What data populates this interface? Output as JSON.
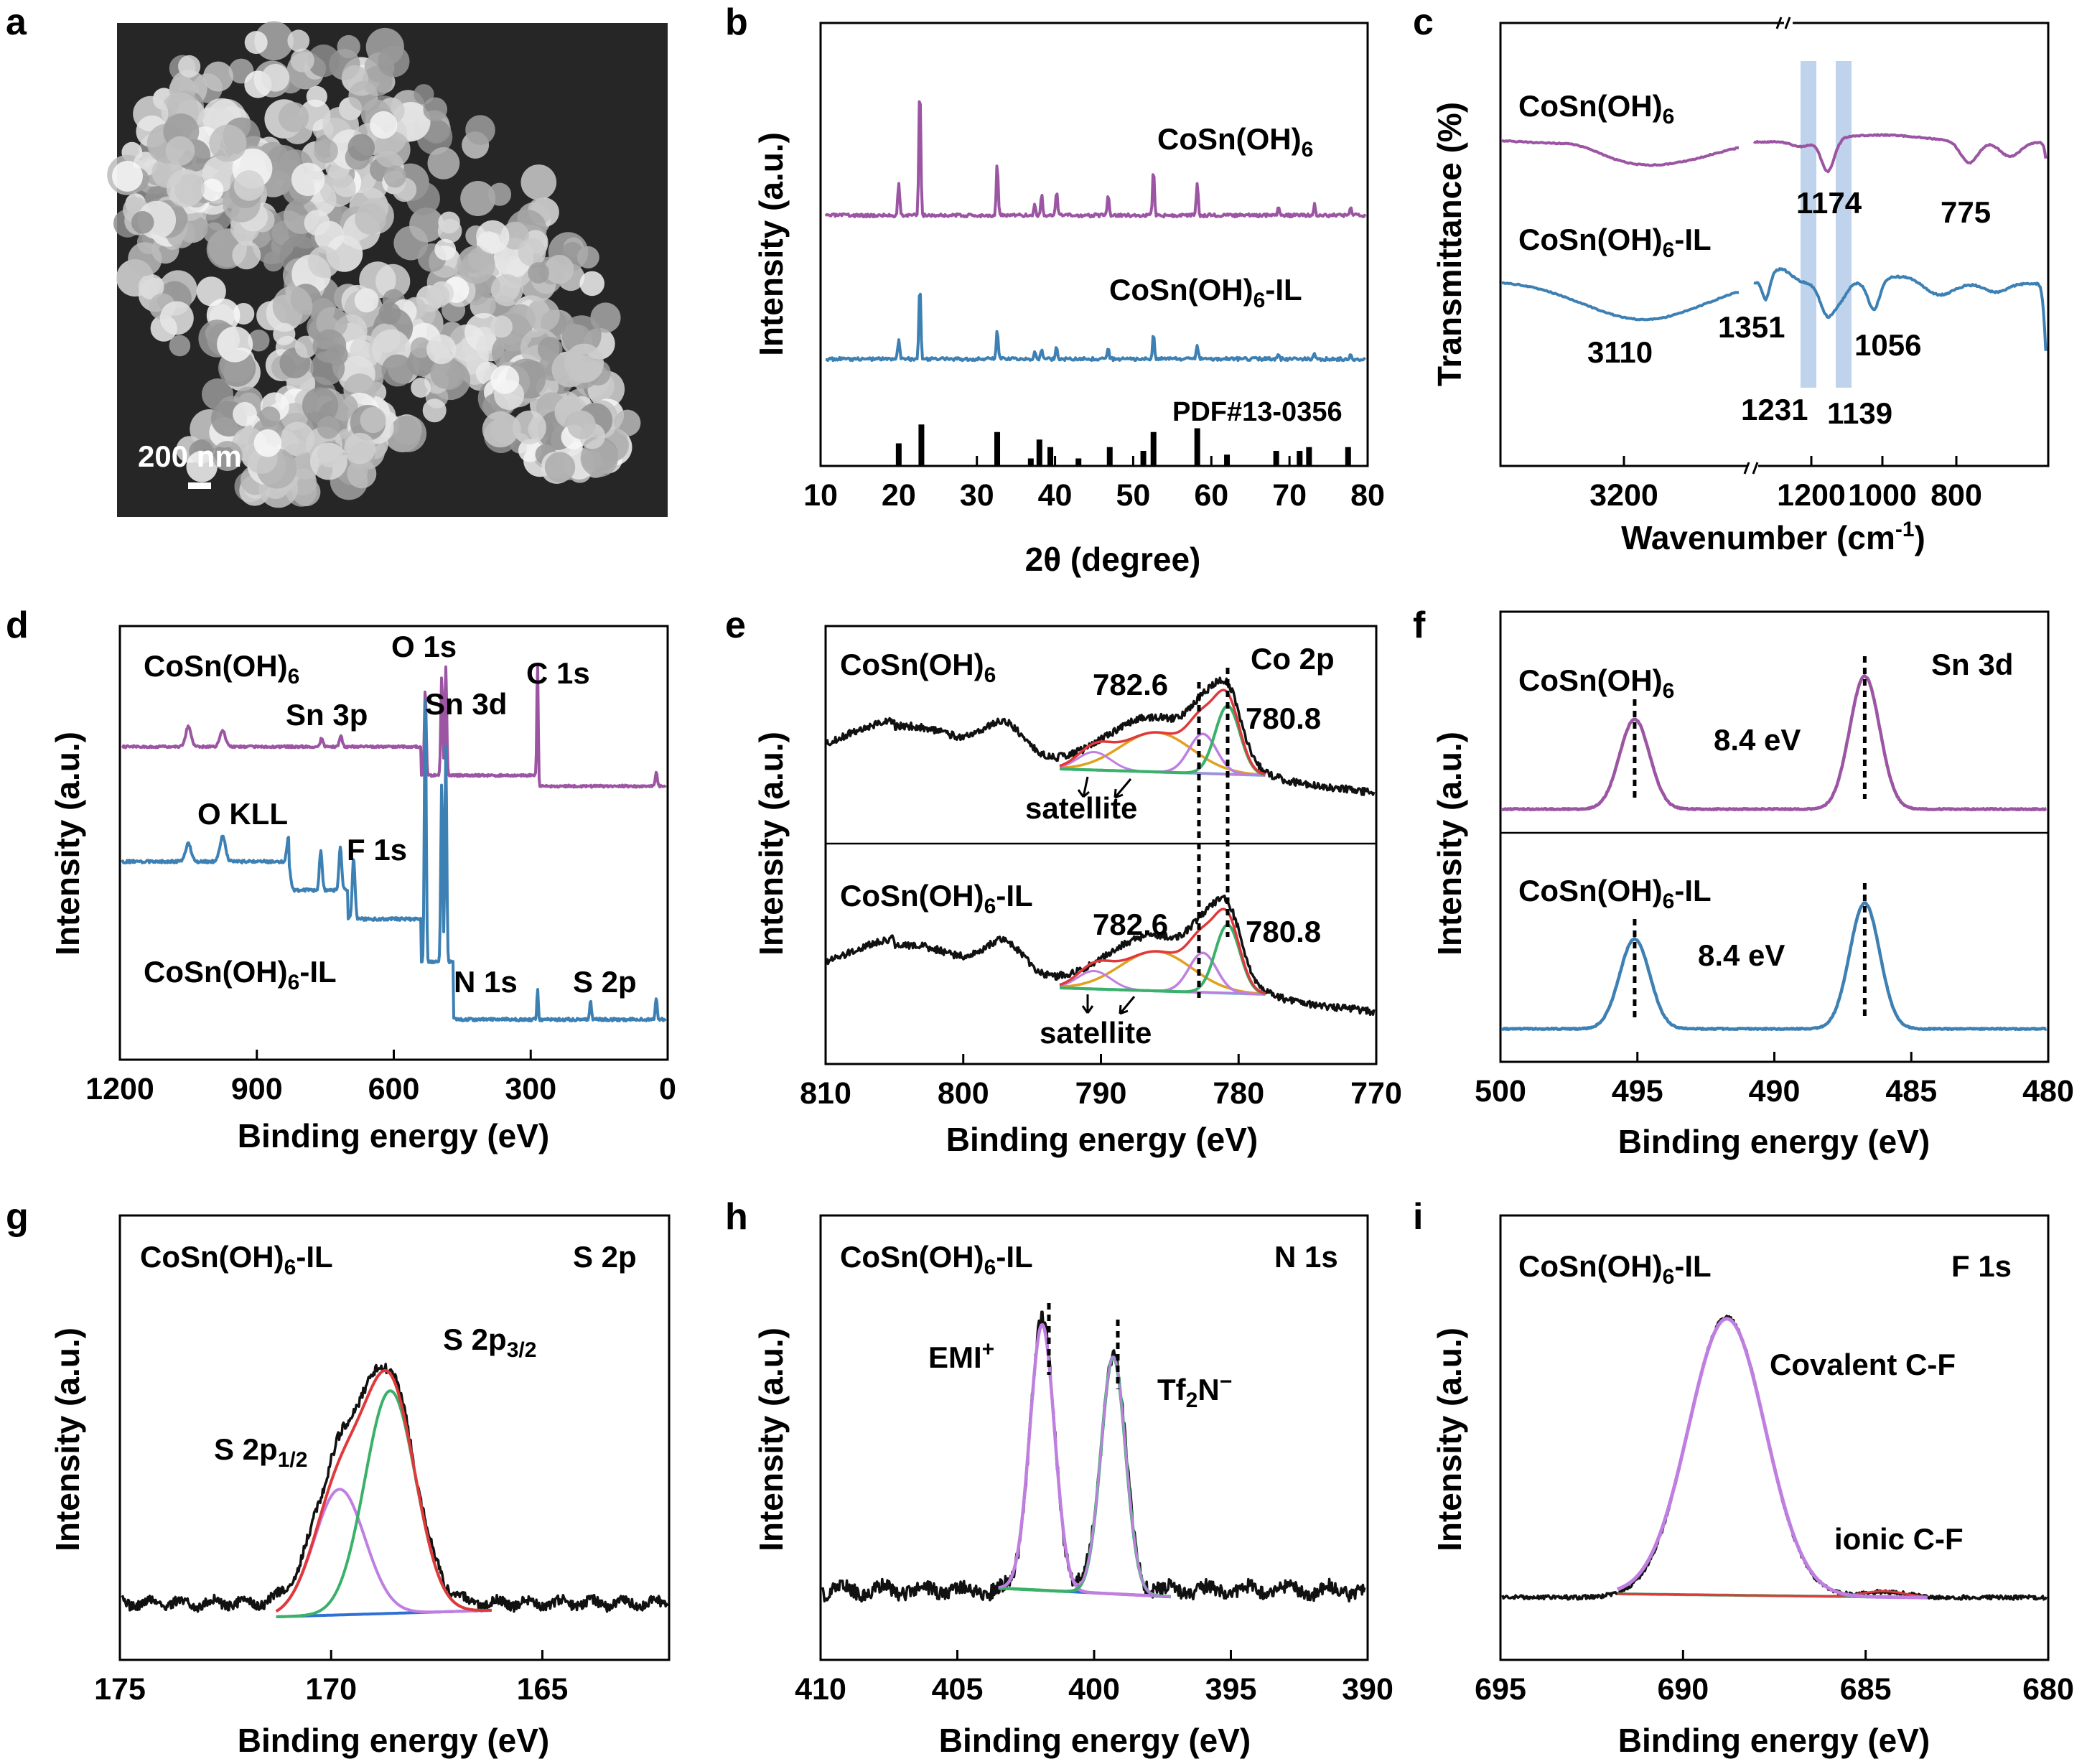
{
  "figure_panels": [
    "a",
    "b",
    "c",
    "d",
    "e",
    "f",
    "g",
    "h",
    "i"
  ],
  "colors": {
    "purple": "#9b55a3",
    "blue": "#3d80b3",
    "black": "#111111",
    "red": "#e0393b",
    "green": "#3ab069",
    "violet": "#bf7fe0",
    "orange": "#e0a020",
    "cyan": "#3cc6c6",
    "fitblue": "#2f6fd6",
    "band": "#a9c4e6"
  },
  "panel_a": {
    "letter": "a",
    "scale_bar": "200 nm",
    "image_icon": "sem-micrograph"
  },
  "chart_data": [
    {
      "panel": "b",
      "type": "line",
      "xlabel": "2θ (degree)",
      "ylabel": "Intensity (a.u.)",
      "xlim": [
        10,
        80
      ],
      "xticks": [
        10,
        20,
        30,
        40,
        50,
        60,
        70,
        80
      ],
      "reference": "PDF#13-0356",
      "series": [
        {
          "name": "CoSn(OH)6",
          "label_main": "CoSn(OH)",
          "label_sub": "6",
          "label_tail": "",
          "color": "#9b55a3",
          "peaks": [
            [
              20.0,
              0.25
            ],
            [
              22.7,
              1.0
            ],
            [
              32.6,
              0.4
            ],
            [
              37.4,
              0.08
            ],
            [
              38.3,
              0.15
            ],
            [
              40.2,
              0.18
            ],
            [
              46.8,
              0.15
            ],
            [
              52.6,
              0.35
            ],
            [
              58.2,
              0.25
            ],
            [
              68.6,
              0.06
            ],
            [
              73.2,
              0.08
            ],
            [
              77.8,
              0.06
            ]
          ]
        },
        {
          "name": "CoSn(OH)6-IL",
          "label_main": "CoSn(OH)",
          "label_sub": "6",
          "label_tail": "-IL",
          "color": "#3d80b3",
          "peaks": [
            [
              20.0,
              0.2
            ],
            [
              22.7,
              0.75
            ],
            [
              32.6,
              0.28
            ],
            [
              37.4,
              0.06
            ],
            [
              38.3,
              0.1
            ],
            [
              40.2,
              0.12
            ],
            [
              46.8,
              0.1
            ],
            [
              52.6,
              0.25
            ],
            [
              58.2,
              0.15
            ],
            [
              68.6,
              0.04
            ],
            [
              73.2,
              0.05
            ],
            [
              77.8,
              0.04
            ]
          ]
        }
      ],
      "sticks": [
        [
          20.0,
          0.3
        ],
        [
          22.9,
          0.55
        ],
        [
          32.6,
          0.45
        ],
        [
          36.9,
          0.1
        ],
        [
          38.0,
          0.35
        ],
        [
          39.4,
          0.25
        ],
        [
          43.0,
          0.1
        ],
        [
          47.0,
          0.25
        ],
        [
          51.3,
          0.2
        ],
        [
          52.6,
          0.45
        ],
        [
          58.2,
          0.5
        ],
        [
          62.0,
          0.15
        ],
        [
          68.3,
          0.2
        ],
        [
          71.3,
          0.2
        ],
        [
          72.5,
          0.25
        ],
        [
          77.5,
          0.25
        ]
      ]
    },
    {
      "panel": "c",
      "type": "line",
      "xlabel": "Wavenumber (cm",
      "xlabel_sup": "-1",
      "xlabel_tail": ")",
      "ylabel": "Transmittance (%)",
      "xticks": [
        "3200",
        "1200",
        "1000",
        "800"
      ],
      "band_positions_cm1": [
        1231,
        1139
      ],
      "annotations": [
        "1174",
        "775",
        "3110",
        "1351",
        "1056",
        "1231",
        "1139"
      ],
      "series": [
        {
          "name": "CoSn(OH)6",
          "label_main": "CoSn(OH)",
          "label_sub": "6",
          "label_tail": "",
          "color": "#9b55a3"
        },
        {
          "name": "CoSn(OH)6-IL",
          "label_main": "CoSn(OH)",
          "label_sub": "6",
          "label_tail": "-IL",
          "color": "#3d80b3"
        }
      ]
    },
    {
      "panel": "d",
      "type": "line",
      "xlabel": "Binding energy (eV)",
      "ylabel": "Intensity (a.u.)",
      "xlim": [
        1200,
        0
      ],
      "xticks": [
        1200,
        900,
        600,
        300,
        0
      ],
      "annotations": [
        "O 1s",
        "C 1s",
        "Sn 3p",
        "Sn 3d",
        "O KLL",
        "F 1s",
        "N 1s",
        "S 2p"
      ],
      "series": [
        {
          "name": "CoSn(OH)6",
          "label_main": "CoSn(OH)",
          "label_sub": "6",
          "label_tail": "",
          "color": "#9b55a3"
        },
        {
          "name": "CoSn(OH)6-IL",
          "label_main": "CoSn(OH)",
          "label_sub": "6",
          "label_tail": "-IL",
          "color": "#3d80b3"
        }
      ]
    },
    {
      "panel": "e",
      "type": "line",
      "xlabel": "Binding energy (eV)",
      "ylabel": "Intensity (a.u.)",
      "xlim": [
        810,
        770
      ],
      "xticks": [
        810,
        800,
        790,
        780,
        770
      ],
      "region": "Co 2p",
      "peaks_eV": [
        782.6,
        780.8
      ],
      "annotations": [
        "782.6",
        "780.8",
        "satellite"
      ],
      "series": [
        {
          "name": "CoSn(OH)6",
          "label_main": "CoSn(OH)",
          "label_sub": "6",
          "label_tail": ""
        },
        {
          "name": "CoSn(OH)6-IL",
          "label_main": "CoSn(OH)",
          "label_sub": "6",
          "label_tail": "-IL"
        }
      ]
    },
    {
      "panel": "f",
      "type": "line",
      "xlabel": "Binding energy (eV)",
      "ylabel": "Intensity (a.u.)",
      "xlim": [
        500,
        480
      ],
      "xticks": [
        500,
        495,
        490,
        485,
        480
      ],
      "region": "Sn 3d",
      "splitting": "8.4 eV",
      "peaks_eV": [
        495.1,
        486.7
      ],
      "series": [
        {
          "name": "CoSn(OH)6",
          "label_main": "CoSn(OH)",
          "label_sub": "6",
          "label_tail": "",
          "color": "#9b55a3"
        },
        {
          "name": "CoSn(OH)6-IL",
          "label_main": "CoSn(OH)",
          "label_sub": "6",
          "label_tail": "-IL",
          "color": "#3d80b3"
        }
      ]
    },
    {
      "panel": "g",
      "type": "line",
      "xlabel": "Binding energy (eV)",
      "ylabel": "Intensity (a.u.)",
      "xlim": [
        175,
        162
      ],
      "xticks": [
        175,
        170,
        165
      ],
      "sample": {
        "label_main": "CoSn(OH)",
        "label_sub": "6",
        "label_tail": "-IL"
      },
      "region": "S 2p",
      "components": [
        {
          "name": "S 2p3/2",
          "main": "S 2p",
          "sub": "3/2",
          "center_eV": 168.6
        },
        {
          "name": "S 2p1/2",
          "main": "S 2p",
          "sub": "1/2",
          "center_eV": 169.8
        }
      ]
    },
    {
      "panel": "h",
      "type": "line",
      "xlabel": "Binding energy (eV)",
      "ylabel": "Intensity (a.u.)",
      "xlim": [
        410,
        390
      ],
      "xticks": [
        410,
        405,
        400,
        395,
        390
      ],
      "sample": {
        "label_main": "CoSn(OH)",
        "label_sub": "6",
        "label_tail": "-IL"
      },
      "region": "N 1s",
      "components": [
        {
          "name": "EMI+",
          "main": "EMI",
          "sup": "+",
          "center_eV": 401.9
        },
        {
          "name": "Tf2N−",
          "main": "Tf",
          "sub": "2",
          "tail": "N",
          "sup": "−",
          "center_eV": 399.3
        }
      ]
    },
    {
      "panel": "i",
      "type": "line",
      "xlabel": "Binding energy (eV)",
      "ylabel": "Intensity (a.u.)",
      "xlim": [
        695,
        680
      ],
      "xticks": [
        695,
        690,
        685,
        680
      ],
      "sample": {
        "label_main": "CoSn(OH)",
        "label_sub": "6",
        "label_tail": "-IL"
      },
      "region": "F 1s",
      "components": [
        {
          "name": "Covalent C-F",
          "center_eV": 688.8
        },
        {
          "name": "ionic C-F",
          "center_eV": 684.5
        }
      ]
    }
  ]
}
